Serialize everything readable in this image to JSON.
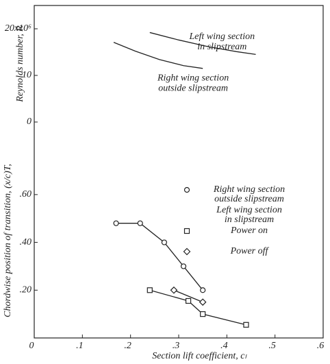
{
  "chart_data": [
    {
      "type": "line",
      "y_label": "Reynolds number, R",
      "xlim": [
        0,
        0.6
      ],
      "ylim": [
        0,
        25
      ],
      "yticks": [
        0,
        10,
        {
          "value": 20,
          "label": "20x10⁶"
        }
      ],
      "series": [
        {
          "x": [
            0.24,
            0.3,
            0.36,
            0.42,
            0.46
          ],
          "values": [
            19.2,
            17.6,
            16.2,
            15.1,
            14.5
          ],
          "color": "#222"
        },
        {
          "x": [
            0.165,
            0.21,
            0.26,
            0.31,
            0.35
          ],
          "values": [
            17.1,
            15.2,
            13.4,
            12.1,
            11.5
          ],
          "color": "#222"
        }
      ],
      "annotations": [
        {
          "lines": [
            "Left wing section",
            "in slipstream"
          ],
          "x": 0.39,
          "y": 18.3
        },
        {
          "lines": [
            "Right wing section",
            "outside slipstream"
          ],
          "x": 0.33,
          "y": 9.4
        }
      ]
    },
    {
      "type": "line",
      "y_label": "Chordwise position of transition, (x/c)T,",
      "x_label": "Section lift coefficient, cₗ",
      "xlim": [
        0,
        0.6
      ],
      "ylim": [
        0,
        0.7
      ],
      "xticks": [
        0,
        {
          "value": 0.1,
          "label": ".1"
        },
        {
          "value": 0.2,
          "label": ".2"
        },
        {
          "value": 0.3,
          "label": ".3"
        },
        {
          "value": 0.4,
          "label": ".4"
        },
        {
          "value": 0.5,
          "label": ".5"
        },
        {
          "value": 0.6,
          "label": ".6"
        }
      ],
      "yticks": [
        {
          "value": 0.2,
          "label": ".20"
        },
        {
          "value": 0.4,
          "label": ".40"
        },
        {
          "value": 0.6,
          "label": ".60"
        }
      ],
      "series": [
        {
          "marker": "circle",
          "x": [
            0.17,
            0.22,
            0.27,
            0.31,
            0.35
          ],
          "values": [
            0.48,
            0.48,
            0.4,
            0.3,
            0.2
          ],
          "color": "#222"
        },
        {
          "marker": "square",
          "x": [
            0.24,
            0.32,
            0.35,
            0.44
          ],
          "values": [
            0.2,
            0.155,
            0.1,
            0.055
          ],
          "color": "#222"
        },
        {
          "marker": "diamond",
          "x": [
            0.29,
            0.35
          ],
          "values": [
            0.2,
            0.15
          ],
          "color": "#222"
        }
      ],
      "legend": [
        {
          "marker": "circle",
          "lines": [
            "Right wing section",
            "outside slipstream"
          ]
        },
        {
          "lines": [
            "Left wing section",
            "in slipstream"
          ]
        },
        {
          "marker": "square",
          "lines": [
            "Power on"
          ]
        },
        {
          "marker": "diamond",
          "lines": [
            "Power off"
          ]
        }
      ]
    }
  ]
}
